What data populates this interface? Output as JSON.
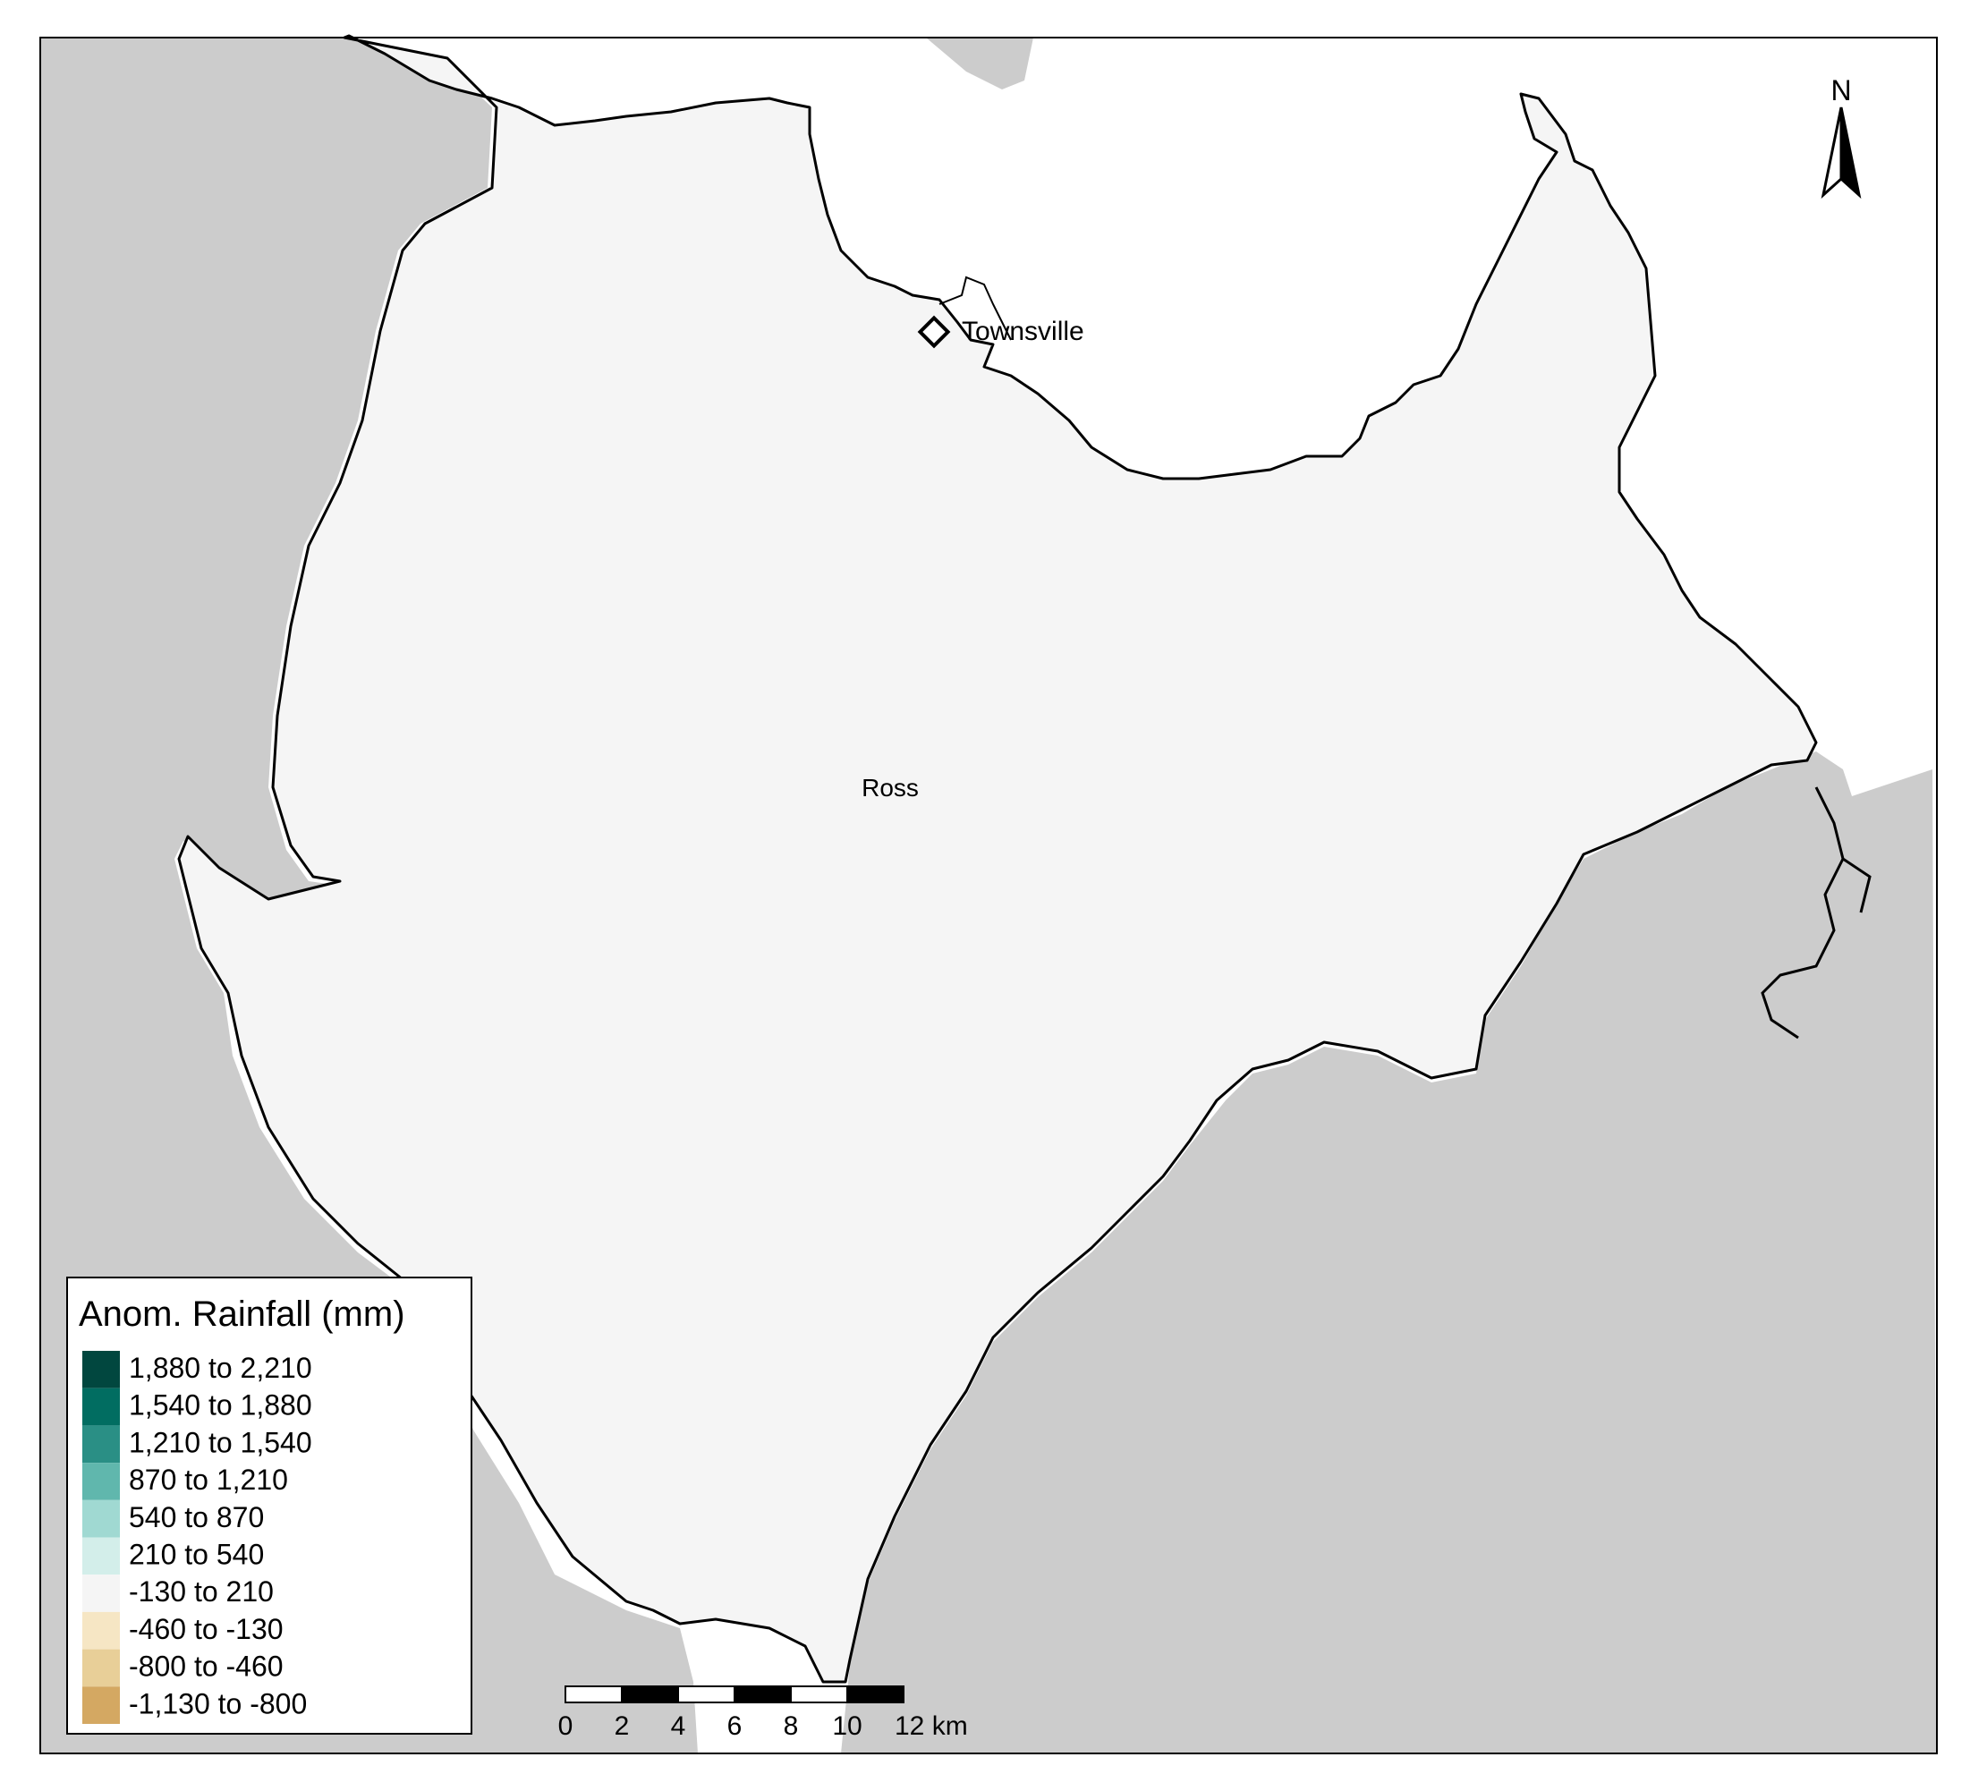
{
  "map": {
    "region_label": "Ross",
    "city_label": "Townsville",
    "north_arrow_label": "N",
    "colors": {
      "region_fill": "#f5f5f5",
      "outside_fill": "#cccccc",
      "sea_fill": "#ffffff",
      "boundary": "#000000"
    }
  },
  "legend": {
    "title": "Anom. Rainfall (mm)",
    "items": [
      {
        "label": "1,880 to 2,210",
        "color": "#01473f"
      },
      {
        "label": "1,540 to 1,880",
        "color": "#016d61"
      },
      {
        "label": "1,210 to 1,540",
        "color": "#2a8f85"
      },
      {
        "label": "870 to 1,210",
        "color": "#60b7ad"
      },
      {
        "label": "540 to 870",
        "color": "#a0d9d2"
      },
      {
        "label": "210 to 540",
        "color": "#d3eeea"
      },
      {
        "label": "-130 to 210",
        "color": "#f5f5f5"
      },
      {
        "label": "-460 to -130",
        "color": "#f6e6c4"
      },
      {
        "label": "-800 to -460",
        "color": "#e8cf98"
      },
      {
        "label": "-1,130 to -800",
        "color": "#d4a862"
      }
    ]
  },
  "scale_bar": {
    "ticks": [
      "0",
      "2",
      "4",
      "6",
      "8",
      "10",
      "12 km"
    ]
  }
}
